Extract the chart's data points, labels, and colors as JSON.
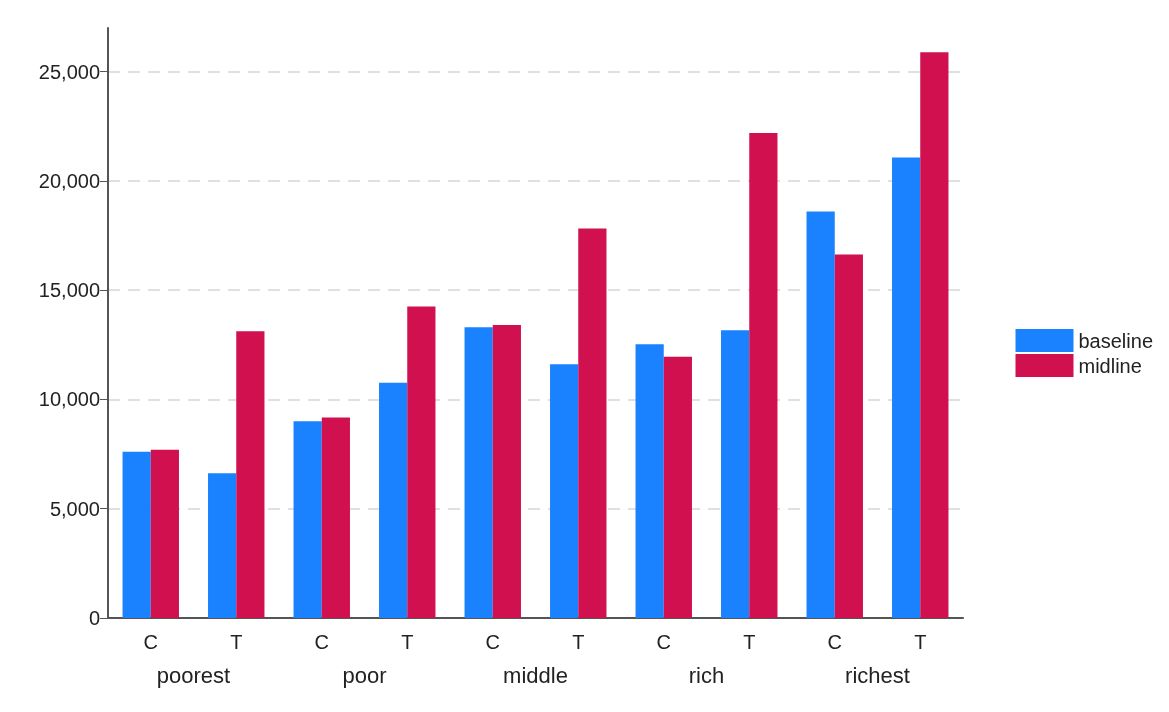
{
  "chart_data": {
    "type": "bar",
    "categories": [
      "C",
      "T",
      "C",
      "T",
      "C",
      "T",
      "C",
      "T",
      "C",
      "T"
    ],
    "annotations": [
      "poorest",
      "poor",
      "middle",
      "rich",
      "richest"
    ],
    "series": [
      {
        "name": "baseline",
        "color": "#1a82ff",
        "values": [
          7610,
          6620,
          9000,
          10770,
          13310,
          11610,
          12530,
          13170,
          18600,
          21070
        ]
      },
      {
        "name": "midline",
        "color": "#d0104f",
        "values": [
          7700,
          13120,
          9170,
          14250,
          13410,
          17820,
          11950,
          22200,
          16640,
          25890
        ]
      }
    ],
    "ylim": [
      0,
      27000
    ],
    "yticks": [
      0,
      {
        "value": 5000,
        "label": "5,000"
      },
      {
        "value": 10000,
        "label": "10,000"
      },
      {
        "value": 15000,
        "label": "15,000"
      },
      {
        "value": 20000,
        "label": "20,000"
      },
      {
        "value": 25000,
        "label": "25,000"
      }
    ],
    "grid": "y",
    "legend": "right"
  }
}
